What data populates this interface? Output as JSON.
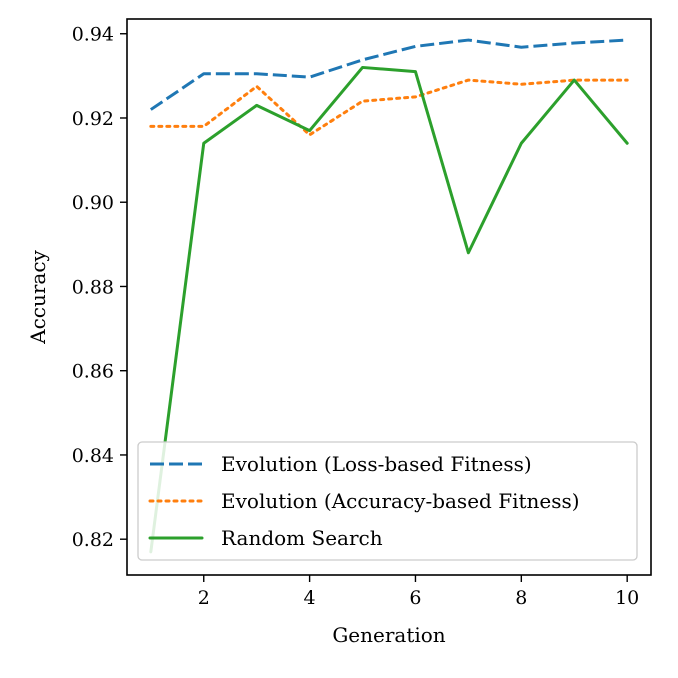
{
  "chart_data": {
    "type": "line",
    "title": "",
    "xlabel": "Generation",
    "ylabel": "Accuracy",
    "x": [
      1,
      2,
      3,
      4,
      5,
      6,
      7,
      8,
      9,
      10
    ],
    "xlim": [
      0.55,
      10.45
    ],
    "ylim": [
      0.8115,
      0.9435
    ],
    "xticks": [
      2,
      4,
      6,
      8,
      10
    ],
    "xtick_labels": [
      "2",
      "4",
      "6",
      "8",
      "10"
    ],
    "yticks": [
      0.82,
      0.84,
      0.86,
      0.88,
      0.9,
      0.92,
      0.94
    ],
    "ytick_labels": [
      "0.82",
      "0.84",
      "0.86",
      "0.88",
      "0.90",
      "0.92",
      "0.94"
    ],
    "grid": false,
    "legend_position": "lower-left",
    "series": [
      {
        "name": "Evolution (Loss-based Fitness)",
        "color": "#1f77b4",
        "style": "dashed",
        "values": [
          0.922,
          0.9305,
          0.9305,
          0.9297,
          0.9338,
          0.937,
          0.9385,
          0.9368,
          0.9378,
          0.9385
        ]
      },
      {
        "name": "Evolution (Accuracy-based Fitness)",
        "color": "#ff7f0e",
        "style": "dotted",
        "values": [
          0.918,
          0.918,
          0.9275,
          0.916,
          0.924,
          0.925,
          0.929,
          0.928,
          0.929,
          0.929
        ]
      },
      {
        "name": "Random Search",
        "color": "#2ca02c",
        "style": "solid",
        "values": [
          0.817,
          0.914,
          0.923,
          0.917,
          0.932,
          0.931,
          0.888,
          0.914,
          0.929,
          0.914
        ]
      }
    ]
  }
}
